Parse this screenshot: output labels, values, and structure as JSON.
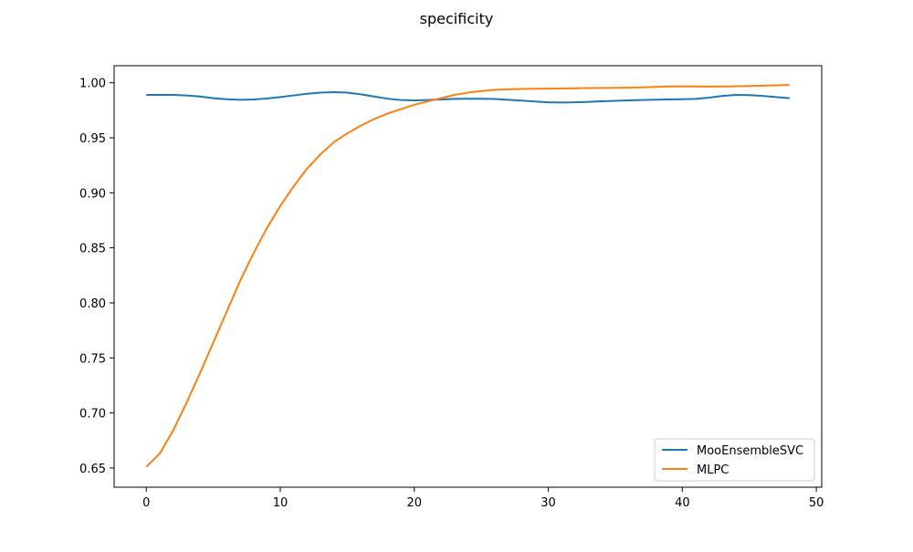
{
  "chart_data": {
    "type": "line",
    "title": "specificity",
    "xlabel": "",
    "ylabel": "",
    "xlim": [
      -2.4,
      50.4
    ],
    "ylim": [
      0.6325,
      1.0155
    ],
    "x_ticks": [
      0,
      10,
      20,
      30,
      40,
      50
    ],
    "x_tick_labels": [
      "0",
      "10",
      "20",
      "30",
      "40",
      "50"
    ],
    "y_ticks": [
      0.65,
      0.7,
      0.75,
      0.8,
      0.85,
      0.9,
      0.95,
      1.0
    ],
    "y_tick_labels": [
      "0.65",
      "0.70",
      "0.75",
      "0.80",
      "0.85",
      "0.90",
      "0.95",
      "1.00"
    ],
    "grid": false,
    "legend_position": "lower-right",
    "x": [
      0,
      1,
      2,
      3,
      4,
      5,
      6,
      7,
      8,
      9,
      10,
      11,
      12,
      13,
      14,
      15,
      16,
      17,
      18,
      19,
      20,
      21,
      22,
      23,
      24,
      25,
      26,
      27,
      28,
      29,
      30,
      31,
      32,
      33,
      34,
      35,
      36,
      37,
      38,
      39,
      40,
      41,
      42,
      43,
      44,
      45,
      46,
      47,
      48
    ],
    "series": [
      {
        "name": "MooEnsembleSVC",
        "color": "#1f77b4",
        "values": [
          0.989,
          0.989,
          0.989,
          0.9885,
          0.9875,
          0.986,
          0.985,
          0.9845,
          0.9848,
          0.9857,
          0.987,
          0.9885,
          0.99,
          0.991,
          0.9915,
          0.991,
          0.9895,
          0.9875,
          0.9855,
          0.9843,
          0.984,
          0.9843,
          0.9848,
          0.9853,
          0.9855,
          0.9855,
          0.9852,
          0.9845,
          0.9838,
          0.983,
          0.9822,
          0.982,
          0.9822,
          0.9827,
          0.9832,
          0.9836,
          0.984,
          0.9843,
          0.9846,
          0.9848,
          0.985,
          0.9853,
          0.9865,
          0.988,
          0.989,
          0.9888,
          0.988,
          0.987,
          0.986
        ]
      },
      {
        "name": "MLPC",
        "color": "#ff7f0e",
        "values": [
          0.651,
          0.663,
          0.684,
          0.709,
          0.736,
          0.764,
          0.792,
          0.82,
          0.845,
          0.868,
          0.888,
          0.906,
          0.922,
          0.935,
          0.946,
          0.954,
          0.961,
          0.967,
          0.972,
          0.976,
          0.98,
          0.983,
          0.986,
          0.989,
          0.991,
          0.9925,
          0.9935,
          0.994,
          0.9944,
          0.9946,
          0.9947,
          0.9948,
          0.995,
          0.9952,
          0.9953,
          0.9954,
          0.9955,
          0.9958,
          0.9962,
          0.9966,
          0.9967,
          0.9966,
          0.9965,
          0.9966,
          0.9968,
          0.9971,
          0.9974,
          0.9977,
          0.998
        ]
      }
    ]
  }
}
